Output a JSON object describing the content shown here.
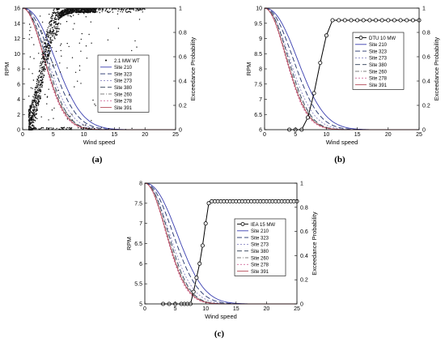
{
  "captions": [
    "(a)",
    "(b)",
    "(c)"
  ],
  "colors": {
    "Site 210": "#3a3fb0",
    "Site 323": "#1f2f6a",
    "Site 273": "#8a86c2",
    "Site 380": "#2a3a52",
    "Site 260": "#7f7f7f",
    "Site 278": "#d06a9c",
    "Site 391": "#b44a58",
    "turbine": "#000000"
  },
  "chart_data": [
    {
      "panel": "(a)",
      "type": "scatter",
      "xlabel": "Wind speed",
      "ylabel": "RPM",
      "y2label": "Exceedance Probability",
      "xlim": [
        0,
        25
      ],
      "ylim": [
        0,
        16
      ],
      "y2lim": [
        0,
        1
      ],
      "xticks": [
        0,
        5,
        10,
        15,
        20,
        25
      ],
      "yticks": [
        0,
        2,
        4,
        6,
        8,
        10,
        12,
        14,
        16
      ],
      "y2ticks": [
        0,
        0.2,
        0.4,
        0.6,
        0.8,
        1
      ],
      "legend_position": "right",
      "turbine": {
        "name": "2.1 MW WT",
        "style": "dots",
        "x": [
          0.5,
          1,
          1.5,
          2,
          2.5,
          3,
          3.5,
          4,
          4.5,
          5,
          5.5,
          6,
          6.5,
          7,
          7.5,
          8,
          9,
          10,
          12,
          15,
          20
        ],
        "y": [
          0,
          0.5,
          1.5,
          3,
          5,
          7,
          9,
          11,
          12.5,
          13.5,
          14.5,
          15,
          15.3,
          15.5,
          15.6,
          15.7,
          15.8,
          15.8,
          15.8,
          15.8,
          15.8
        ]
      },
      "series": [
        {
          "name": "Site 210",
          "dash": "",
          "mean": 6.2,
          "k": 2.2
        },
        {
          "name": "Site 323",
          "dash": "6,3",
          "mean": 5.5,
          "k": 2.1
        },
        {
          "name": "Site 273",
          "dash": "2,2",
          "mean": 4.9,
          "k": 2.0
        },
        {
          "name": "Site 380",
          "dash": "6,3",
          "mean": 4.6,
          "k": 2.1
        },
        {
          "name": "Site 260",
          "dash": "5,2,1,2",
          "mean": 4.4,
          "k": 2.0
        },
        {
          "name": "Site 278",
          "dash": "2,2",
          "mean": 4.2,
          "k": 2.0
        },
        {
          "name": "Site 391",
          "dash": "",
          "mean": 4.3,
          "k": 2.0
        }
      ]
    },
    {
      "panel": "(b)",
      "type": "line",
      "xlabel": "Wind speed",
      "ylabel": "RPM",
      "y2label": "Exceedance Probability",
      "xlim": [
        0,
        25
      ],
      "ylim": [
        6,
        10
      ],
      "y2lim": [
        0,
        1
      ],
      "xticks": [
        0,
        5,
        10,
        15,
        20,
        25
      ],
      "yticks": [
        6,
        6.5,
        7,
        7.5,
        8,
        8.5,
        9,
        9.5,
        10
      ],
      "y2ticks": [
        0,
        0.2,
        0.4,
        0.6,
        0.8,
        1
      ],
      "legend_position": "top-right",
      "turbine": {
        "name": "DTU 10 MW",
        "style": "circles",
        "x": [
          4,
          5,
          6,
          7,
          8,
          9,
          10,
          11,
          12,
          13,
          14,
          15,
          16,
          17,
          18,
          19,
          20,
          21,
          22,
          23,
          24,
          25
        ],
        "y": [
          6,
          6,
          6,
          6.4,
          7.2,
          8.2,
          9.1,
          9.6,
          9.6,
          9.6,
          9.6,
          9.6,
          9.6,
          9.6,
          9.6,
          9.6,
          9.6,
          9.6,
          9.6,
          9.6,
          9.6,
          9.6
        ]
      },
      "series": [
        {
          "name": "Site 210",
          "dash": "",
          "mean": 6.2,
          "k": 2.2
        },
        {
          "name": "Site 323",
          "dash": "6,3",
          "mean": 5.5,
          "k": 2.1
        },
        {
          "name": "Site 273",
          "dash": "2,2",
          "mean": 4.9,
          "k": 2.0
        },
        {
          "name": "Site 380",
          "dash": "6,3",
          "mean": 4.6,
          "k": 2.1
        },
        {
          "name": "Site 260",
          "dash": "5,2,1,2",
          "mean": 4.4,
          "k": 2.0
        },
        {
          "name": "Site 278",
          "dash": "2,2",
          "mean": 4.2,
          "k": 2.0
        },
        {
          "name": "Site 391",
          "dash": "",
          "mean": 4.3,
          "k": 2.0
        }
      ]
    },
    {
      "panel": "(c)",
      "type": "line",
      "xlabel": "Wind speed",
      "ylabel": "RPM",
      "y2label": "Exceedance Probability",
      "xlim": [
        0,
        25
      ],
      "ylim": [
        5,
        8
      ],
      "y2lim": [
        0,
        1
      ],
      "xticks": [
        0,
        5,
        10,
        15,
        20,
        25
      ],
      "yticks": [
        5,
        5.5,
        6,
        6.5,
        7,
        7.5,
        8
      ],
      "y2ticks": [
        0,
        0.2,
        0.4,
        0.6,
        0.8,
        1
      ],
      "legend_position": "right",
      "turbine": {
        "name": "IEA 15 MW",
        "style": "circles",
        "x": [
          3,
          4,
          5,
          6,
          6.5,
          7,
          7.5,
          8,
          8.5,
          9,
          9.5,
          10,
          10.5,
          11,
          11.5,
          12,
          12.5,
          13,
          13.5,
          14,
          14.5,
          15,
          15.5,
          16,
          16.5,
          17,
          17.5,
          18,
          18.5,
          19,
          19.5,
          20,
          20.5,
          21,
          21.5,
          22,
          22.5,
          23,
          23.5,
          24,
          24.5,
          25
        ],
        "y": [
          5,
          5,
          5,
          5,
          5,
          5,
          5,
          5.3,
          5.65,
          6.0,
          6.45,
          7.0,
          7.5,
          7.55,
          7.55,
          7.55,
          7.55,
          7.55,
          7.55,
          7.55,
          7.55,
          7.55,
          7.55,
          7.55,
          7.55,
          7.55,
          7.55,
          7.55,
          7.55,
          7.55,
          7.55,
          7.55,
          7.55,
          7.55,
          7.55,
          7.55,
          7.55,
          7.55,
          7.55,
          7.55,
          7.55,
          7.55
        ]
      },
      "series": [
        {
          "name": "Site 210",
          "dash": "",
          "mean": 6.2,
          "k": 2.2
        },
        {
          "name": "Site 323",
          "dash": "6,3",
          "mean": 5.5,
          "k": 2.1
        },
        {
          "name": "Site 273",
          "dash": "2,2",
          "mean": 4.9,
          "k": 2.0
        },
        {
          "name": "Site 380",
          "dash": "6,3",
          "mean": 4.6,
          "k": 2.1
        },
        {
          "name": "Site 260",
          "dash": "5,2,1,2",
          "mean": 4.4,
          "k": 2.0
        },
        {
          "name": "Site 278",
          "dash": "2,2",
          "mean": 4.2,
          "k": 2.0
        },
        {
          "name": "Site 391",
          "dash": "",
          "mean": 4.3,
          "k": 2.0
        }
      ]
    }
  ]
}
